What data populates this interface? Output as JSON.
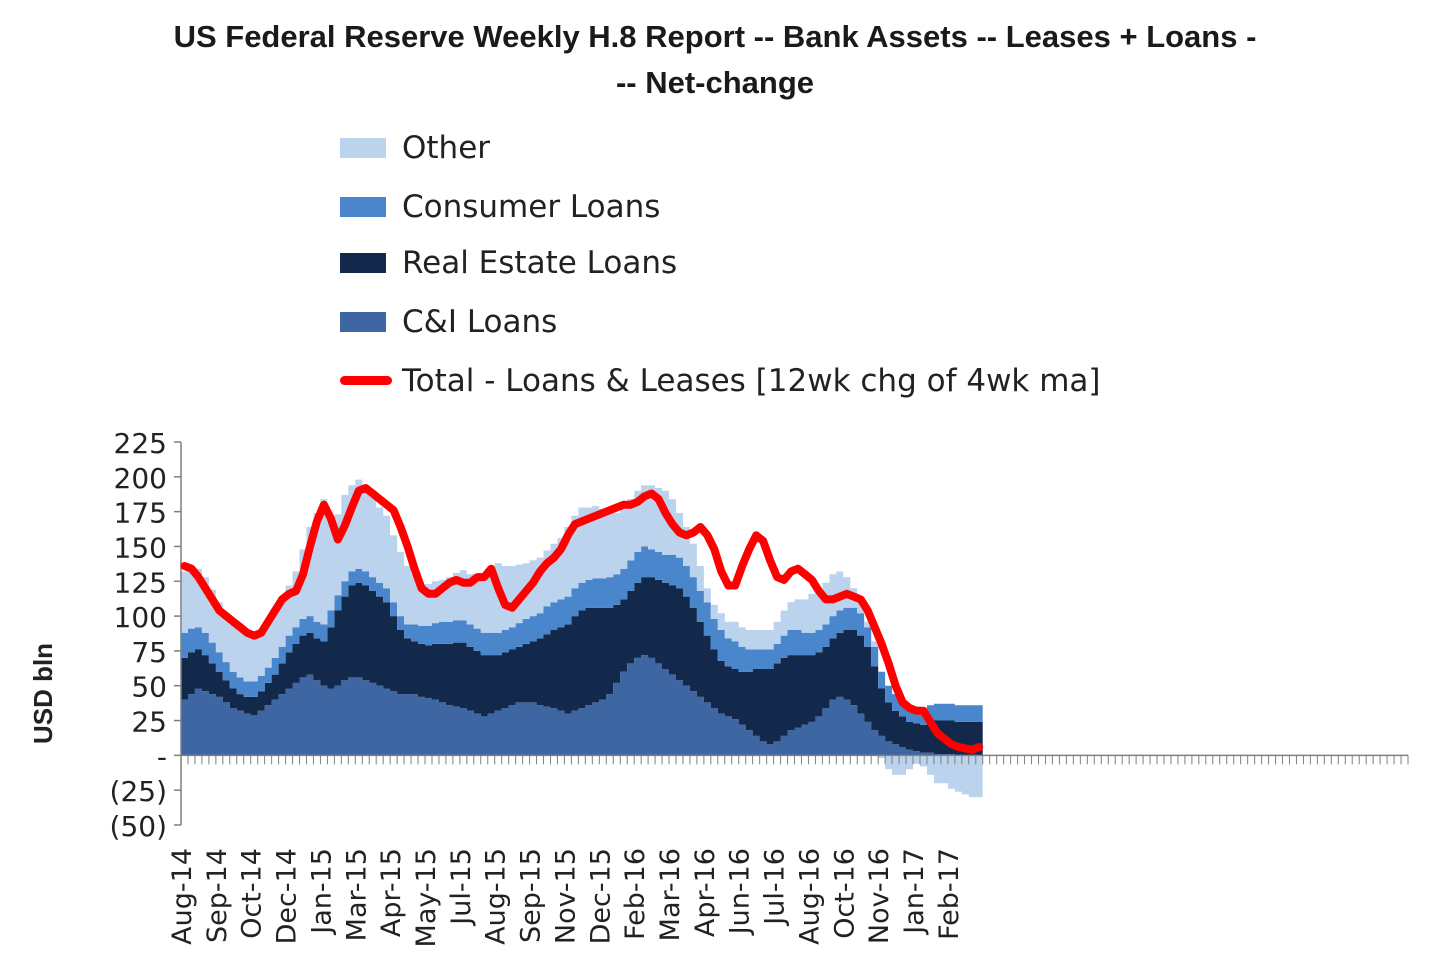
{
  "title_line1": "US Federal Reserve Weekly H.8 Report  -- Bank Assets -- Leases + Loans -",
  "title_line2": "-- Net-change",
  "colors": {
    "other": "#bcd3ee",
    "consumer": "#4a86cc",
    "real_estate": "#13294b",
    "ci": "#3d66a3",
    "total": "#ff0000",
    "axis": "#7f7f7f"
  },
  "legend": [
    {
      "label": "Other",
      "kind": "swatch",
      "color_key": "other"
    },
    {
      "label": "Consumer Loans",
      "kind": "swatch",
      "color_key": "consumer"
    },
    {
      "label": "Real Estate Loans",
      "kind": "swatch",
      "color_key": "real_estate"
    },
    {
      "label": "C&I Loans",
      "kind": "swatch",
      "color_key": "ci"
    },
    {
      "label": "Total - Loans & Leases [12wk chg of 4wk ma]",
      "kind": "line",
      "color_key": "total"
    }
  ],
  "chart_data": {
    "type": "area",
    "stacked": true,
    "ylabel": "USD bln",
    "ylim": [
      -50,
      225
    ],
    "yticks": [
      -50,
      -25,
      0,
      25,
      50,
      75,
      100,
      125,
      150,
      175,
      200,
      225
    ],
    "ytick_labels": [
      "(50)",
      "(25)",
      "-",
      "25",
      "50",
      "75",
      "100",
      "125",
      "150",
      "175",
      "200",
      "225"
    ],
    "x_weeks": 176,
    "x_tick_labels": [
      "Aug-14",
      "Sep-14",
      "Oct-14",
      "Dec-14",
      "Jan-15",
      "Mar-15",
      "Apr-15",
      "May-15",
      "Jul-15",
      "Aug-15",
      "Sep-15",
      "Nov-15",
      "Dec-15",
      "Feb-16",
      "Mar-16",
      "Apr-16",
      "Jun-16",
      "Jul-16",
      "Aug-16",
      "Oct-16",
      "Nov-16",
      "Jan-17",
      "Feb-17"
    ],
    "x_tick_weeks": [
      0,
      5,
      10,
      15,
      20,
      25,
      30,
      35,
      40,
      45,
      50,
      55,
      60,
      65,
      70,
      75,
      80,
      85,
      90,
      95,
      100,
      105,
      110
    ],
    "data_weeks": 115,
    "series": [
      {
        "name": "C&I Loans",
        "key": "ci",
        "values": [
          40,
          44,
          48,
          46,
          44,
          42,
          38,
          34,
          32,
          30,
          29,
          32,
          36,
          40,
          44,
          48,
          52,
          56,
          58,
          54,
          50,
          48,
          50,
          54,
          56,
          56,
          54,
          52,
          50,
          48,
          46,
          44,
          44,
          44,
          42,
          41,
          40,
          38,
          36,
          35,
          34,
          32,
          30,
          28,
          30,
          32,
          34,
          36,
          38,
          38,
          38,
          36,
          35,
          34,
          32,
          30,
          32,
          34,
          36,
          38,
          40,
          44,
          52,
          60,
          66,
          70,
          72,
          70,
          66,
          62,
          58,
          54,
          50,
          46,
          42,
          38,
          34,
          30,
          28,
          26,
          22,
          18,
          14,
          10,
          8,
          10,
          14,
          18,
          20,
          22,
          24,
          28,
          34,
          40,
          42,
          40,
          36,
          30,
          24,
          18,
          14,
          10,
          8,
          6,
          4,
          3,
          2,
          2,
          1,
          1,
          1,
          0,
          0,
          0,
          0
        ]
      },
      {
        "name": "Real Estate Loans",
        "key": "real_estate",
        "values": [
          30,
          30,
          28,
          26,
          22,
          18,
          16,
          14,
          12,
          12,
          13,
          14,
          16,
          18,
          22,
          26,
          28,
          30,
          30,
          30,
          32,
          44,
          54,
          60,
          66,
          68,
          68,
          66,
          64,
          62,
          54,
          46,
          40,
          38,
          38,
          38,
          40,
          42,
          44,
          46,
          47,
          46,
          45,
          44,
          42,
          40,
          40,
          40,
          40,
          42,
          44,
          48,
          52,
          56,
          60,
          64,
          68,
          70,
          70,
          68,
          66,
          62,
          56,
          52,
          52,
          54,
          56,
          58,
          60,
          62,
          64,
          66,
          64,
          60,
          54,
          48,
          42,
          38,
          36,
          36,
          38,
          42,
          48,
          52,
          54,
          56,
          56,
          54,
          52,
          50,
          48,
          46,
          44,
          44,
          46,
          50,
          54,
          56,
          54,
          46,
          34,
          28,
          24,
          22,
          20,
          20,
          20,
          22,
          24,
          24,
          24,
          24,
          24,
          24,
          24
        ]
      },
      {
        "name": "Consumer Loans",
        "key": "consumer",
        "values": [
          18,
          17,
          16,
          16,
          15,
          14,
          13,
          12,
          12,
          11,
          11,
          11,
          11,
          12,
          12,
          12,
          12,
          12,
          12,
          12,
          12,
          12,
          11,
          11,
          10,
          10,
          10,
          10,
          10,
          10,
          10,
          10,
          10,
          12,
          13,
          14,
          15,
          16,
          16,
          16,
          16,
          16,
          16,
          16,
          16,
          16,
          16,
          16,
          17,
          18,
          18,
          18,
          20,
          20,
          20,
          20,
          20,
          20,
          20,
          21,
          21,
          22,
          22,
          22,
          22,
          22,
          22,
          20,
          20,
          20,
          22,
          22,
          22,
          22,
          22,
          24,
          22,
          22,
          20,
          20,
          18,
          16,
          14,
          14,
          14,
          14,
          16,
          18,
          18,
          16,
          16,
          16,
          16,
          16,
          16,
          16,
          16,
          16,
          14,
          14,
          12,
          12,
          12,
          12,
          12,
          12,
          12,
          12,
          12,
          12,
          12,
          12,
          12,
          12,
          12
        ]
      },
      {
        "name": "Other",
        "key": "other",
        "values": [
          44,
          44,
          42,
          40,
          38,
          36,
          34,
          34,
          36,
          34,
          32,
          34,
          32,
          32,
          34,
          36,
          40,
          50,
          64,
          78,
          90,
          66,
          58,
          62,
          62,
          64,
          62,
          58,
          54,
          52,
          48,
          46,
          42,
          36,
          30,
          30,
          30,
          30,
          32,
          34,
          36,
          36,
          36,
          38,
          42,
          50,
          46,
          44,
          42,
          40,
          40,
          40,
          40,
          42,
          44,
          50,
          52,
          54,
          52,
          52,
          50,
          46,
          44,
          44,
          44,
          44,
          44,
          46,
          46,
          46,
          40,
          32,
          28,
          24,
          18,
          10,
          10,
          12,
          12,
          14,
          14,
          14,
          14,
          14,
          14,
          16,
          18,
          20,
          22,
          24,
          28,
          30,
          30,
          30,
          28,
          22,
          14,
          8,
          4,
          4,
          -2,
          -10,
          -14,
          -14,
          -10,
          -6,
          -8,
          -14,
          -20,
          -20,
          -24,
          -26,
          -28,
          -30,
          -30
        ]
      },
      {
        "name": "Total - Loans & Leases [12wk chg of 4wk ma]",
        "key": "total",
        "kind": "line",
        "values": [
          136,
          134,
          128,
          120,
          112,
          104,
          100,
          96,
          92,
          88,
          86,
          88,
          96,
          104,
          112,
          116,
          118,
          130,
          150,
          168,
          180,
          170,
          155,
          165,
          178,
          190,
          192,
          188,
          184,
          180,
          176,
          164,
          150,
          134,
          120,
          116,
          116,
          120,
          124,
          126,
          124,
          124,
          128,
          128,
          134,
          120,
          108,
          106,
          112,
          118,
          124,
          132,
          138,
          142,
          148,
          158,
          166,
          168,
          170,
          172,
          174,
          176,
          178,
          180,
          180,
          182,
          186,
          188,
          184,
          174,
          166,
          160,
          158,
          160,
          164,
          158,
          148,
          132,
          122,
          122,
          136,
          148,
          158,
          154,
          140,
          128,
          126,
          132,
          134,
          130,
          126,
          118,
          112,
          112,
          114,
          116,
          114,
          112,
          104,
          92,
          80,
          66,
          50,
          38,
          34,
          32,
          32,
          24,
          16,
          12,
          8,
          6,
          5,
          4,
          6
        ]
      }
    ]
  }
}
